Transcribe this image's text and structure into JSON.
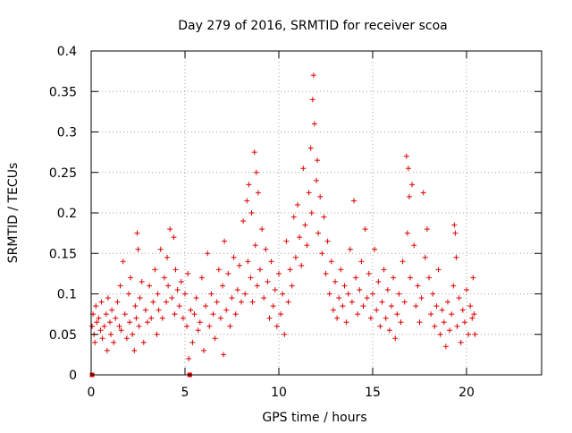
{
  "chart_data": {
    "type": "scatter",
    "title": "Day 279 of 2016, SRMTID for receiver scoa",
    "xlabel": "GPS time / hours",
    "ylabel": "SRMTID / TECUs",
    "xlim": [
      0,
      24
    ],
    "ylim": [
      0,
      0.4
    ],
    "x_ticks": [
      "0",
      "5",
      "10",
      "15",
      "20"
    ],
    "y_ticks": [
      "0",
      "0.05",
      "0.1",
      "0.15",
      "0.2",
      "0.25",
      "0.3",
      "0.35",
      "0.4"
    ],
    "x_tick_values": [
      0,
      5,
      10,
      15,
      20
    ],
    "y_tick_values": [
      0,
      0.05,
      0.1,
      0.15,
      0.2,
      0.25,
      0.3,
      0.35,
      0.4
    ],
    "grid": true,
    "marker": "+",
    "color": "#e00000",
    "series": [
      {
        "points": [
          [
            0.05,
            0.06
          ],
          [
            0.1,
            0.075
          ],
          [
            0.15,
            0.05
          ],
          [
            0.2,
            0.04
          ],
          [
            0.25,
            0.085
          ],
          [
            0.3,
            0.065
          ],
          [
            0.4,
            0.07
          ],
          [
            0.5,
            0.055
          ],
          [
            0.55,
            0.09
          ],
          [
            0.6,
            0.045
          ],
          [
            0.7,
            0.06
          ],
          [
            0.8,
            0.075
          ],
          [
            0.85,
            0.03
          ],
          [
            0.9,
            0.095
          ],
          [
            1.0,
            0.065
          ],
          [
            1.05,
            0.05
          ],
          [
            1.1,
            0.08
          ],
          [
            1.2,
            0.04
          ],
          [
            1.3,
            0.07
          ],
          [
            1.4,
            0.09
          ],
          [
            1.5,
            0.06
          ],
          [
            1.55,
            0.11
          ],
          [
            1.6,
            0.055
          ],
          [
            1.7,
            0.14
          ],
          [
            1.8,
            0.075
          ],
          [
            1.9,
            0.045
          ],
          [
            2.0,
            0.1
          ],
          [
            2.05,
            0.065
          ],
          [
            2.1,
            0.12
          ],
          [
            2.2,
            0.05
          ],
          [
            2.3,
            0.03
          ],
          [
            2.35,
            0.085
          ],
          [
            2.4,
            0.07
          ],
          [
            2.45,
            0.175
          ],
          [
            2.5,
            0.155
          ],
          [
            2.55,
            0.06
          ],
          [
            2.6,
            0.095
          ],
          [
            2.7,
            0.115
          ],
          [
            2.8,
            0.04
          ],
          [
            2.9,
            0.08
          ],
          [
            3.0,
            0.065
          ],
          [
            3.1,
            0.11
          ],
          [
            3.2,
            0.07
          ],
          [
            3.3,
            0.09
          ],
          [
            3.4,
            0.13
          ],
          [
            3.5,
            0.05
          ],
          [
            3.55,
            0.1
          ],
          [
            3.6,
            0.08
          ],
          [
            3.7,
            0.155
          ],
          [
            3.8,
            0.07
          ],
          [
            3.9,
            0.12
          ],
          [
            4.0,
            0.09
          ],
          [
            4.05,
            0.145
          ],
          [
            4.1,
            0.11
          ],
          [
            4.2,
            0.18
          ],
          [
            4.3,
            0.095
          ],
          [
            4.4,
            0.17
          ],
          [
            4.45,
            0.075
          ],
          [
            4.5,
            0.13
          ],
          [
            4.6,
            0.105
          ],
          [
            4.7,
            0.085
          ],
          [
            4.8,
            0.115
          ],
          [
            4.9,
            0.07
          ],
          [
            5.0,
            0.1
          ],
          [
            5.1,
            0.06
          ],
          [
            5.15,
            0.125
          ],
          [
            5.2,
            0.02
          ],
          [
            5.3,
            0.08
          ],
          [
            5.4,
            0.04
          ],
          [
            5.5,
            0.075
          ],
          [
            5.6,
            0.095
          ],
          [
            5.7,
            0.055
          ],
          [
            5.8,
            0.065
          ],
          [
            5.9,
            0.12
          ],
          [
            6.0,
            0.03
          ],
          [
            6.1,
            0.085
          ],
          [
            6.2,
            0.15
          ],
          [
            6.3,
            0.06
          ],
          [
            6.4,
            0.1
          ],
          [
            6.5,
            0.075
          ],
          [
            6.6,
            0.045
          ],
          [
            6.7,
            0.09
          ],
          [
            6.8,
            0.13
          ],
          [
            6.9,
            0.07
          ],
          [
            7.0,
            0.11
          ],
          [
            7.05,
            0.025
          ],
          [
            7.1,
            0.165
          ],
          [
            7.2,
            0.08
          ],
          [
            7.3,
            0.125
          ],
          [
            7.4,
            0.06
          ],
          [
            7.5,
            0.095
          ],
          [
            7.6,
            0.145
          ],
          [
            7.7,
            0.075
          ],
          [
            7.8,
            0.105
          ],
          [
            7.9,
            0.135
          ],
          [
            8.0,
            0.09
          ],
          [
            8.1,
            0.19
          ],
          [
            8.2,
            0.1
          ],
          [
            8.3,
            0.215
          ],
          [
            8.35,
            0.14
          ],
          [
            8.4,
            0.235
          ],
          [
            8.5,
            0.12
          ],
          [
            8.55,
            0.2
          ],
          [
            8.6,
            0.09
          ],
          [
            8.7,
            0.275
          ],
          [
            8.75,
            0.16
          ],
          [
            8.8,
            0.25
          ],
          [
            8.85,
            0.11
          ],
          [
            8.9,
            0.225
          ],
          [
            9.0,
            0.13
          ],
          [
            9.1,
            0.18
          ],
          [
            9.2,
            0.095
          ],
          [
            9.3,
            0.155
          ],
          [
            9.4,
            0.115
          ],
          [
            9.5,
            0.07
          ],
          [
            9.6,
            0.14
          ],
          [
            9.7,
            0.085
          ],
          [
            9.8,
            0.105
          ],
          [
            9.9,
            0.06
          ],
          [
            10.0,
            0.125
          ],
          [
            10.1,
            0.075
          ],
          [
            10.2,
            0.1
          ],
          [
            10.3,
            0.05
          ],
          [
            10.4,
            0.165
          ],
          [
            10.5,
            0.09
          ],
          [
            10.6,
            0.13
          ],
          [
            10.7,
            0.11
          ],
          [
            10.8,
            0.195
          ],
          [
            10.9,
            0.145
          ],
          [
            11.0,
            0.21
          ],
          [
            11.1,
            0.17
          ],
          [
            11.2,
            0.135
          ],
          [
            11.3,
            0.255
          ],
          [
            11.4,
            0.185
          ],
          [
            11.5,
            0.16
          ],
          [
            11.6,
            0.225
          ],
          [
            11.7,
            0.28
          ],
          [
            11.75,
            0.2
          ],
          [
            11.8,
            0.34
          ],
          [
            11.85,
            0.37
          ],
          [
            11.9,
            0.31
          ],
          [
            12.0,
            0.24
          ],
          [
            12.05,
            0.265
          ],
          [
            12.1,
            0.175
          ],
          [
            12.2,
            0.22
          ],
          [
            12.3,
            0.15
          ],
          [
            12.4,
            0.195
          ],
          [
            12.5,
            0.125
          ],
          [
            12.6,
            0.165
          ],
          [
            12.7,
            0.1
          ],
          [
            12.8,
            0.14
          ],
          [
            12.9,
            0.08
          ],
          [
            13.0,
            0.115
          ],
          [
            13.1,
            0.07
          ],
          [
            13.2,
            0.095
          ],
          [
            13.3,
            0.13
          ],
          [
            13.4,
            0.085
          ],
          [
            13.5,
            0.11
          ],
          [
            13.6,
            0.065
          ],
          [
            13.7,
            0.1
          ],
          [
            13.8,
            0.155
          ],
          [
            13.9,
            0.09
          ],
          [
            14.0,
            0.215
          ],
          [
            14.1,
            0.12
          ],
          [
            14.2,
            0.075
          ],
          [
            14.3,
            0.105
          ],
          [
            14.4,
            0.14
          ],
          [
            14.5,
            0.085
          ],
          [
            14.6,
            0.18
          ],
          [
            14.7,
            0.095
          ],
          [
            14.8,
            0.125
          ],
          [
            14.9,
            0.07
          ],
          [
            15.0,
            0.1
          ],
          [
            15.1,
            0.155
          ],
          [
            15.2,
            0.08
          ],
          [
            15.3,
            0.115
          ],
          [
            15.4,
            0.06
          ],
          [
            15.5,
            0.09
          ],
          [
            15.6,
            0.13
          ],
          [
            15.7,
            0.07
          ],
          [
            15.8,
            0.105
          ],
          [
            15.9,
            0.055
          ],
          [
            16.0,
            0.085
          ],
          [
            16.1,
            0.12
          ],
          [
            16.2,
            0.045
          ],
          [
            16.3,
            0.075
          ],
          [
            16.4,
            0.1
          ],
          [
            16.5,
            0.065
          ],
          [
            16.6,
            0.14
          ],
          [
            16.7,
            0.09
          ],
          [
            16.8,
            0.27
          ],
          [
            16.85,
            0.175
          ],
          [
            16.9,
            0.255
          ],
          [
            16.95,
            0.22
          ],
          [
            17.0,
            0.12
          ],
          [
            17.1,
            0.235
          ],
          [
            17.2,
            0.16
          ],
          [
            17.3,
            0.085
          ],
          [
            17.4,
            0.11
          ],
          [
            17.5,
            0.065
          ],
          [
            17.6,
            0.095
          ],
          [
            17.7,
            0.225
          ],
          [
            17.8,
            0.145
          ],
          [
            17.9,
            0.18
          ],
          [
            18.0,
            0.12
          ],
          [
            18.1,
            0.075
          ],
          [
            18.2,
            0.1
          ],
          [
            18.3,
            0.06
          ],
          [
            18.4,
            0.085
          ],
          [
            18.5,
            0.13
          ],
          [
            18.6,
            0.05
          ],
          [
            18.7,
            0.08
          ],
          [
            18.8,
            0.065
          ],
          [
            18.9,
            0.035
          ],
          [
            19.0,
            0.09
          ],
          [
            19.1,
            0.055
          ],
          [
            19.2,
            0.075
          ],
          [
            19.3,
            0.11
          ],
          [
            19.35,
            0.185
          ],
          [
            19.4,
            0.175
          ],
          [
            19.45,
            0.145
          ],
          [
            19.5,
            0.06
          ],
          [
            19.6,
            0.095
          ],
          [
            19.7,
            0.04
          ],
          [
            19.8,
            0.08
          ],
          [
            19.9,
            0.065
          ],
          [
            20.0,
            0.105
          ],
          [
            20.1,
            0.05
          ],
          [
            20.2,
            0.085
          ],
          [
            20.3,
            0.07
          ],
          [
            20.35,
            0.12
          ],
          [
            20.4,
            0.075
          ],
          [
            20.45,
            0.05
          ]
        ]
      }
    ],
    "baseline_markers": [
      [
        0.05,
        0
      ],
      [
        5.25,
        0
      ]
    ]
  }
}
